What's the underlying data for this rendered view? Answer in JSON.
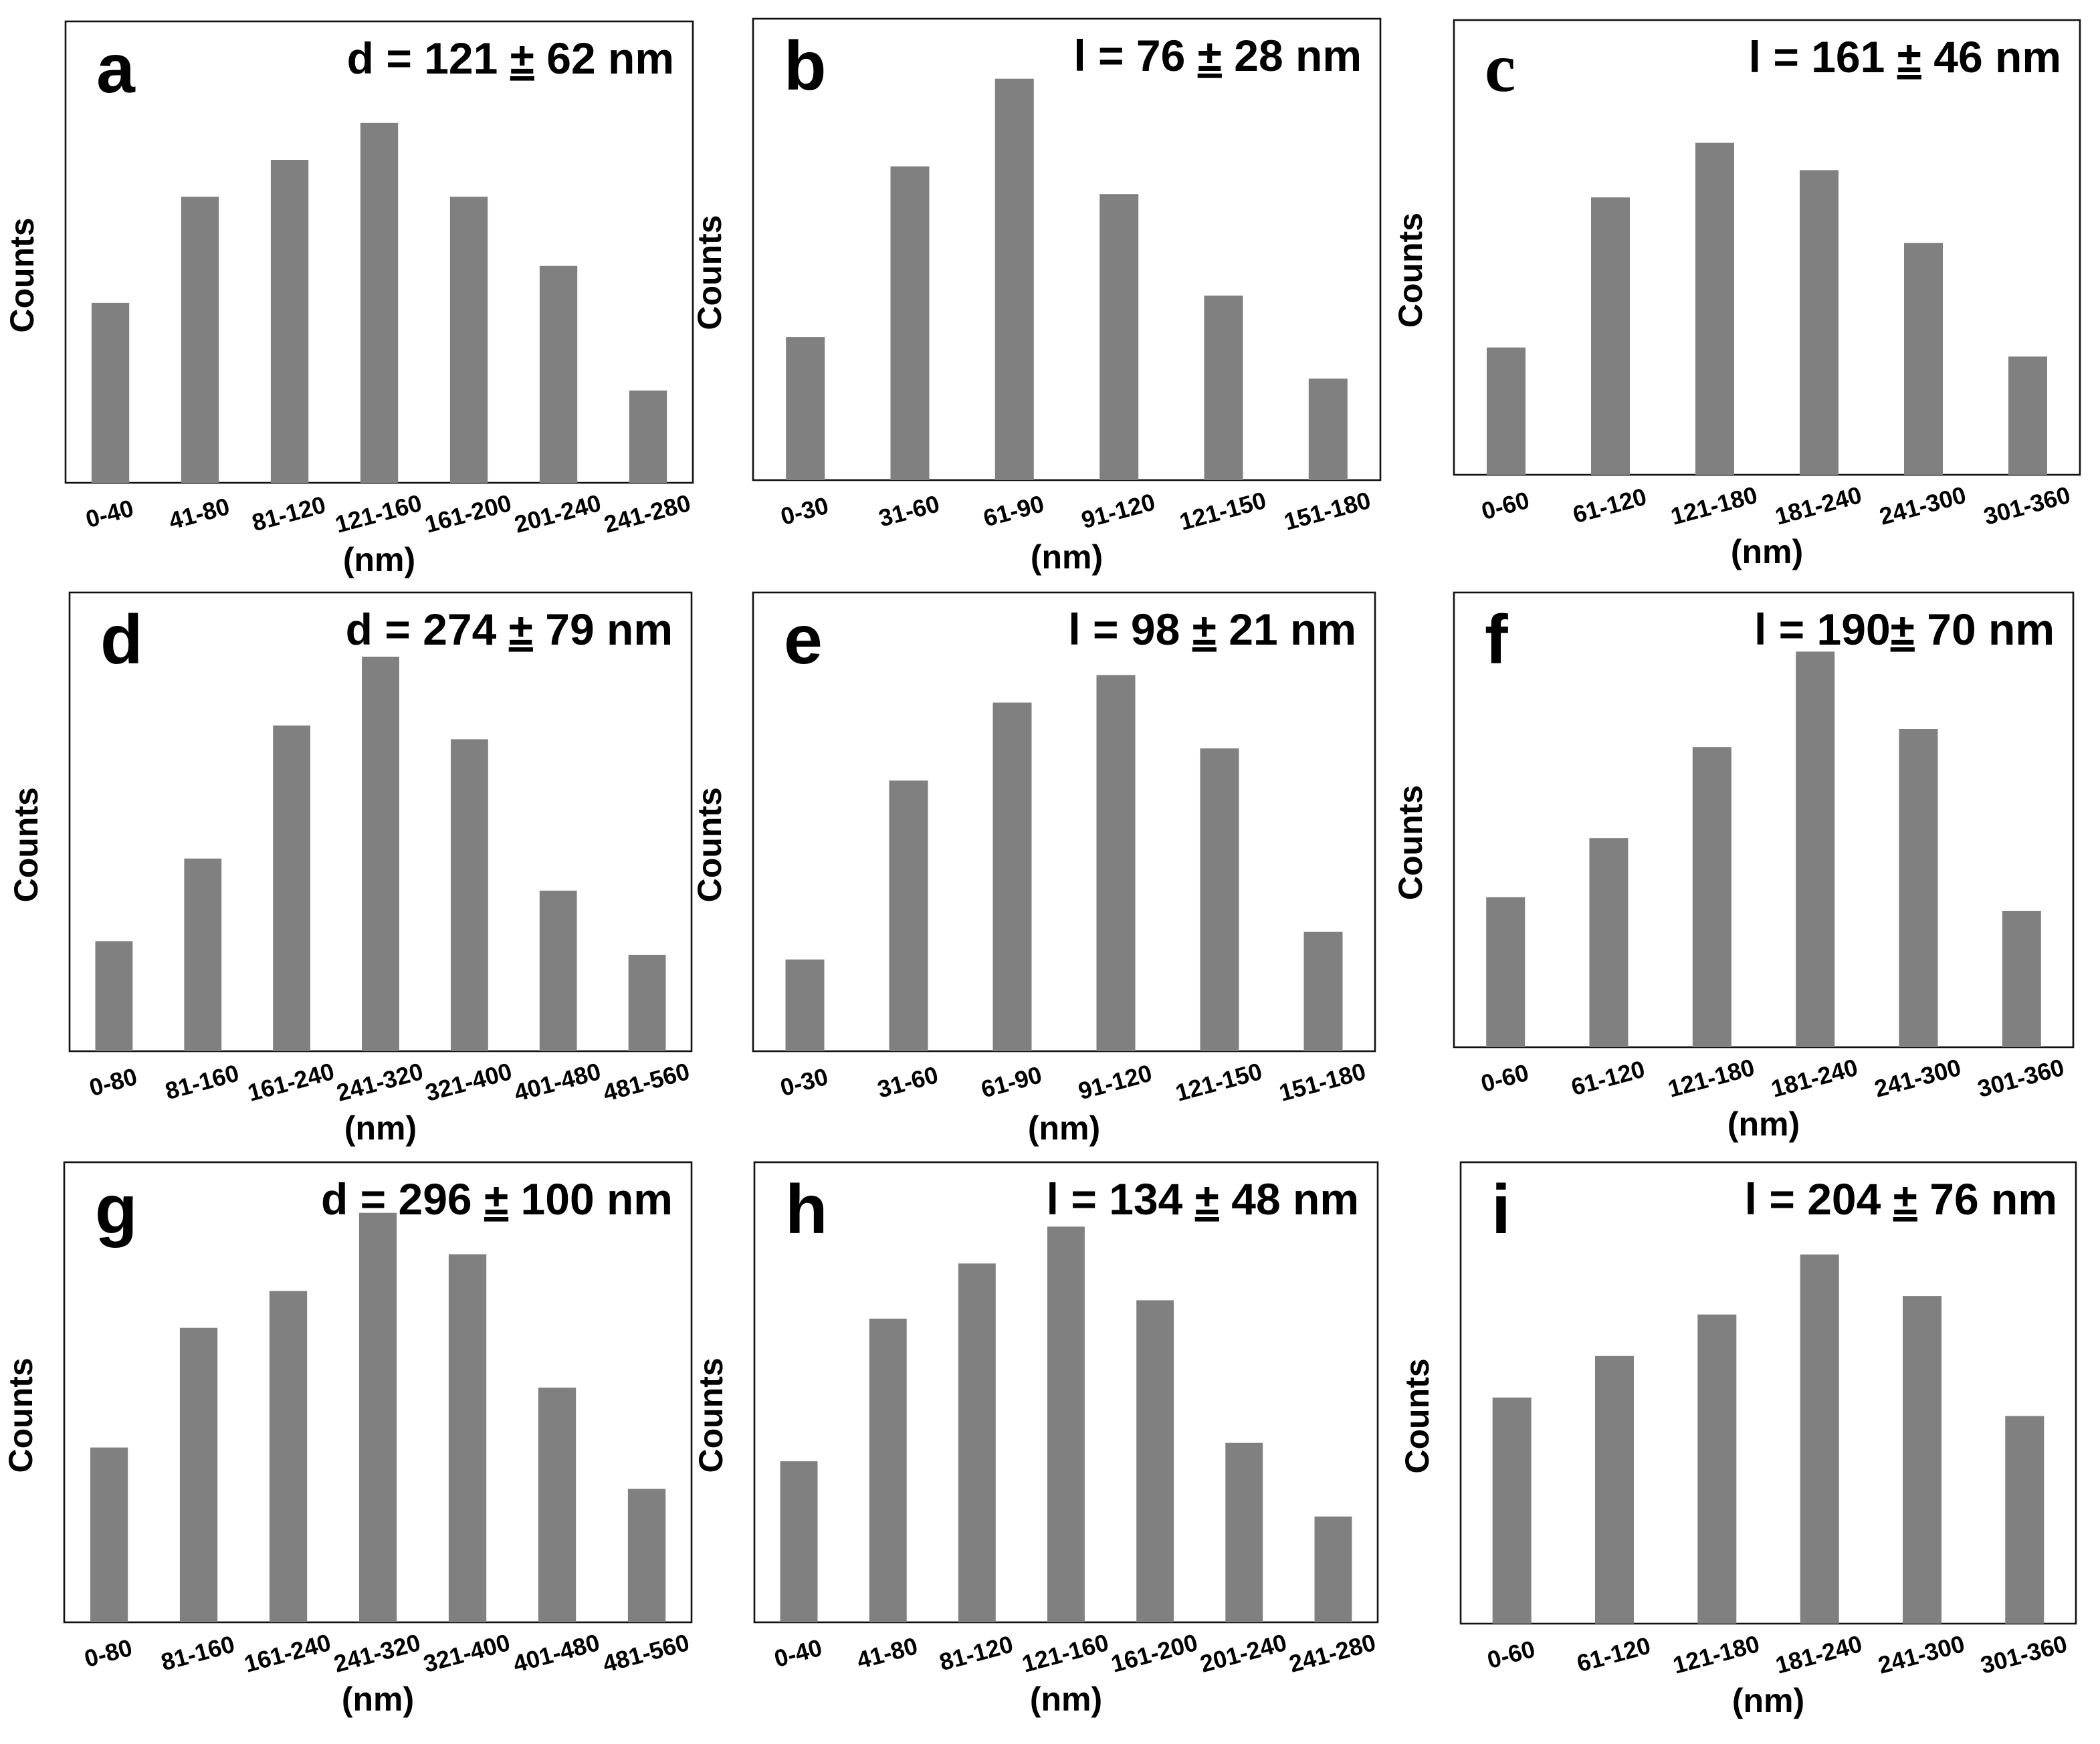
{
  "bar_color": "#808080",
  "chart_data": [
    {
      "panel": "a",
      "type": "bar",
      "title": "d = 121 ± 62 nm",
      "stat_symbol": "d",
      "stat_mean": "121",
      "stat_pm": "±",
      "stat_sd": "62 nm",
      "xlabel": "(nm)",
      "ylabel": "Counts",
      "categories": [
        "0-40",
        "41-80",
        "81-120",
        "121-160",
        "161-200",
        "201-240",
        "241-280"
      ],
      "values": [
        39,
        62,
        70,
        78,
        62,
        47,
        20
      ],
      "ylim": [
        0,
        100
      ]
    },
    {
      "panel": "b",
      "type": "bar",
      "title": "l = 76 ± 28 nm",
      "stat_symbol": "l",
      "stat_mean": "76",
      "stat_pm": "±",
      "stat_sd": "28 nm",
      "xlabel": "(nm)",
      "ylabel": "Counts",
      "categories": [
        "0-30",
        "31-60",
        "61-90",
        "91-120",
        "121-150",
        "151-180"
      ],
      "values": [
        31,
        68,
        87,
        62,
        40,
        22
      ],
      "ylim": [
        0,
        100
      ]
    },
    {
      "panel": "c",
      "type": "bar",
      "title": "l = 161 ± 46 nm",
      "stat_symbol": "l",
      "stat_mean": "161",
      "stat_pm": "±",
      "stat_sd": "46 nm",
      "xlabel": "(nm)",
      "ylabel": "Counts",
      "categories": [
        "0-60",
        "61-120",
        "121-180",
        "181-240",
        "241-300",
        "301-360"
      ],
      "values": [
        28,
        61,
        73,
        67,
        51,
        26
      ],
      "ylim": [
        0,
        100
      ]
    },
    {
      "panel": "d",
      "type": "bar",
      "title": "d = 274 ± 79 nm",
      "stat_symbol": "d",
      "stat_mean": "274",
      "stat_pm": "±",
      "stat_sd": "79 nm",
      "xlabel": "(nm)",
      "ylabel": "Counts",
      "categories": [
        "0-80",
        "81-160",
        "161-240",
        "241-320",
        "321-400",
        "401-480",
        "481-560"
      ],
      "values": [
        24,
        42,
        71,
        86,
        68,
        35,
        21
      ],
      "ylim": [
        0,
        100
      ]
    },
    {
      "panel": "e",
      "type": "bar",
      "title": "l = 98 ± 21 nm",
      "stat_symbol": "l",
      "stat_mean": "98",
      "stat_pm": "±",
      "stat_sd": "21 nm",
      "xlabel": "(nm)",
      "ylabel": "Counts",
      "categories": [
        "0-30",
        "31-60",
        "61-90",
        "91-120",
        "121-150",
        "151-180"
      ],
      "values": [
        20,
        59,
        76,
        82,
        66,
        26
      ],
      "ylim": [
        0,
        100
      ]
    },
    {
      "panel": "f",
      "type": "bar",
      "title": "l = 190± 70 nm",
      "stat_symbol": "l",
      "stat_mean": "190",
      "stat_pm": "±",
      "stat_sd": "70 nm",
      "xlabel": "(nm)",
      "ylabel": "Counts",
      "categories": [
        "0-60",
        "61-120",
        "121-180",
        "181-240",
        "241-300",
        "301-360"
      ],
      "values": [
        33,
        46,
        66,
        87,
        70,
        30
      ],
      "ylim": [
        0,
        100
      ]
    },
    {
      "panel": "g",
      "type": "bar",
      "title": "d = 296 ± 100 nm",
      "stat_symbol": "d",
      "stat_mean": "296",
      "stat_pm": "±",
      "stat_sd": "100 nm",
      "xlabel": "(nm)",
      "ylabel": "Counts",
      "categories": [
        "0-80",
        "81-160",
        "161-240",
        "241-320",
        "321-400",
        "401-480",
        "481-560"
      ],
      "values": [
        38,
        64,
        72,
        89,
        80,
        51,
        29
      ],
      "ylim": [
        0,
        100
      ]
    },
    {
      "panel": "h",
      "type": "bar",
      "title": "l = 134 ± 48 nm",
      "stat_symbol": "l",
      "stat_mean": "134",
      "stat_pm": "±",
      "stat_sd": "48 nm",
      "xlabel": "(nm)",
      "ylabel": "Counts",
      "categories": [
        "0-40",
        "41-80",
        "81-120",
        "121-160",
        "161-200",
        "201-240",
        "241-280"
      ],
      "values": [
        35,
        66,
        78,
        86,
        70,
        39,
        23
      ],
      "ylim": [
        0,
        100
      ]
    },
    {
      "panel": "i",
      "type": "bar",
      "title": "l = 204 ± 76 nm",
      "stat_symbol": "l",
      "stat_mean": "204",
      "stat_pm": "±",
      "stat_sd": "76 nm",
      "xlabel": "(nm)",
      "ylabel": "Counts",
      "categories": [
        "0-60",
        "61-120",
        "121-180",
        "181-240",
        "241-300",
        "301-360"
      ],
      "values": [
        49,
        58,
        67,
        80,
        71,
        45
      ],
      "ylim": [
        0,
        100
      ]
    }
  ]
}
